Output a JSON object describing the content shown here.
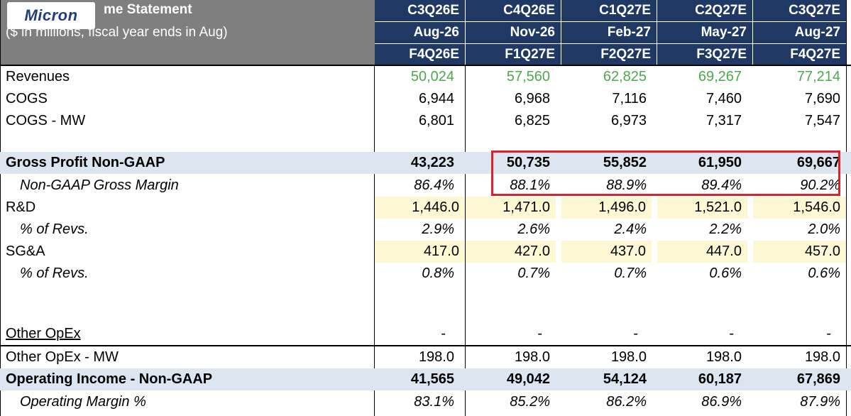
{
  "title": {
    "line1": "me Statement",
    "line2": "($ in millions, fiscal year ends in Aug)"
  },
  "logo": {
    "text": "Micron"
  },
  "columns": [
    {
      "cal": "C3Q26E",
      "month": "Aug-26",
      "fiscal": "F4Q26E"
    },
    {
      "cal": "C4Q26E",
      "month": "Nov-26",
      "fiscal": "F1Q27E"
    },
    {
      "cal": "C1Q27E",
      "month": "Feb-27",
      "fiscal": "F2Q27E"
    },
    {
      "cal": "C2Q27E",
      "month": "May-27",
      "fiscal": "F3Q27E"
    },
    {
      "cal": "C3Q27E",
      "month": "Aug-27",
      "fiscal": "F4Q27E"
    }
  ],
  "rows": {
    "revenues": {
      "label": "Revenues",
      "values": [
        "50,024",
        "57,560",
        "62,825",
        "69,267",
        "77,214"
      ]
    },
    "cogs": {
      "label": "COGS",
      "values": [
        "6,944",
        "6,968",
        "7,116",
        "7,460",
        "7,690"
      ]
    },
    "cogs_mw": {
      "label": "COGS - MW",
      "values": [
        "6,801",
        "6,825",
        "6,973",
        "7,317",
        "7,547"
      ]
    },
    "gross_profit": {
      "label": "Gross Profit Non-GAAP",
      "values": [
        "43,223",
        "50,735",
        "55,852",
        "61,950",
        "69,667"
      ]
    },
    "gross_margin": {
      "label": "Non-GAAP Gross Margin",
      "values": [
        "86.4%",
        "88.1%",
        "88.9%",
        "89.4%",
        "90.2%"
      ]
    },
    "rnd": {
      "label": "R&D",
      "values": [
        "1,446.0",
        "1,471.0",
        "1,496.0",
        "1,521.0",
        "1,546.0"
      ]
    },
    "rnd_pct": {
      "label": "% of Revs.",
      "values": [
        "2.9%",
        "2.6%",
        "2.4%",
        "2.2%",
        "2.0%"
      ]
    },
    "sga": {
      "label": "SG&A",
      "values": [
        "417.0",
        "427.0",
        "437.0",
        "447.0",
        "457.0"
      ]
    },
    "sga_pct": {
      "label": "% of Revs.",
      "values": [
        "0.8%",
        "0.7%",
        "0.7%",
        "0.6%",
        "0.6%"
      ]
    },
    "other_opex": {
      "label": "Other OpEx",
      "values": [
        "-",
        "-",
        "-",
        "-",
        "-"
      ]
    },
    "other_opex_mw": {
      "label": "Other OpEx - MW",
      "values": [
        "198.0",
        "198.0",
        "198.0",
        "198.0",
        "198.0"
      ]
    },
    "op_income": {
      "label": "Operating Income - Non-GAAP",
      "values": [
        "41,565",
        "49,042",
        "54,124",
        "60,187",
        "67,869"
      ]
    },
    "op_margin": {
      "label": "Operating Margin %",
      "values": [
        "83.1%",
        "85.2%",
        "86.2%",
        "86.9%",
        "87.9%"
      ]
    }
  },
  "colors": {
    "header_bg": "#1f3864",
    "title_bg": "#7f7f7f",
    "revenue_green": "#4ea84e",
    "highlight_red": "#e0202b",
    "band_blue": "#dce6f1",
    "band_yellow": "#fdf8d3"
  }
}
